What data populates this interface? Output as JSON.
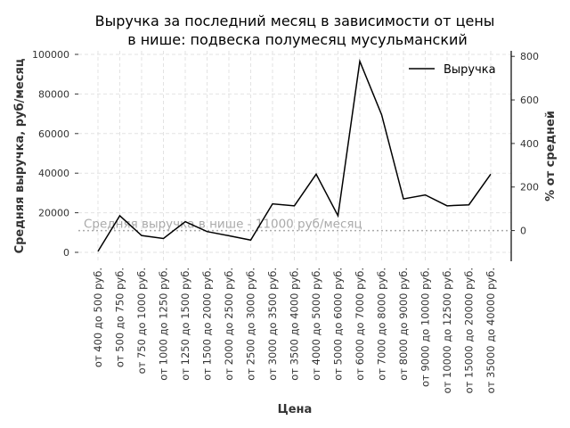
{
  "chart_data": {
    "type": "line",
    "title_line1": "Выручка за последний месяц в зависимости от цены",
    "title_line2": "в нише: подвеска полумесяц мусульманский",
    "xlabel": "Цена",
    "ylabel": "Средняя выручка, руб/месяц",
    "y2label": "% от средней",
    "categories": [
      "от 400 до 500 руб.",
      "от 500 до 750 руб.",
      "от 750 до 1000 руб.",
      "от 1000 до 1250 руб.",
      "от 1250 до 1500 руб.",
      "от 1500 до 2000 руб.",
      "от 2000 до 2500 руб.",
      "от 2500 до 3000 руб.",
      "от 3000 до 3500 руб.",
      "от 3500 до 4000 руб.",
      "от 4000 до 5000 руб.",
      "от 5000 до 6000 руб.",
      "от 6000 до 7000 руб.",
      "от 7000 до 8000 руб.",
      "от 8000 до 9000 руб.",
      "от 9000 до 10000 руб.",
      "от 10000 до 12500 руб.",
      "от 15000 до 20000 руб.",
      "от 35000 до 40000 руб."
    ],
    "series": [
      {
        "name": "Выручка",
        "color": "#000000",
        "values": [
          500,
          18500,
          8500,
          7000,
          15500,
          10500,
          8400,
          6200,
          24500,
          23500,
          39500,
          18500,
          96500,
          69500,
          27000,
          29000,
          23500,
          24000,
          39500
        ]
      }
    ],
    "ylim": [
      -4500,
      103000
    ],
    "yticks": [
      "0",
      "20000",
      "40000",
      "60000",
      "80000",
      "100000"
    ],
    "y2ticks": [
      "0",
      "200",
      "400",
      "600",
      "800"
    ],
    "mean_value": 11000,
    "mean_label": "Средняя выручка в нише - 11000 руб/месяц",
    "legend": "top-right",
    "grid": true
  }
}
